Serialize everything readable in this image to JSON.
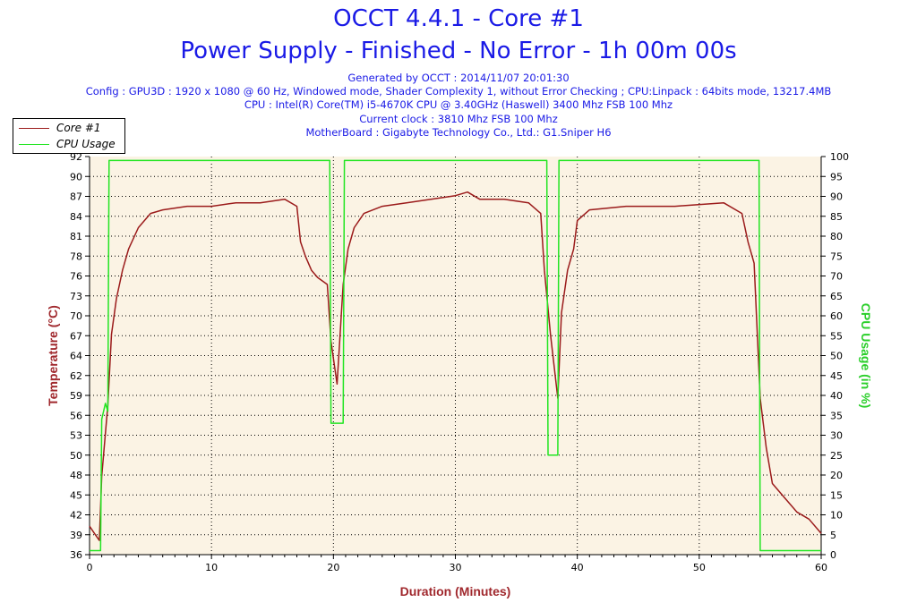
{
  "header": {
    "title": "OCCT 4.4.1 - Core #1",
    "subtitle": "Power Supply - Finished - No Error - 1h 00m 00s",
    "info_lines": [
      "Generated by OCCT : 2014/11/07 20:01:30",
      "Config : GPU3D : 1920 x 1080 @ 60 Hz, Windowed mode, Shader Complexity 1, without Error Checking ; CPU:Linpack : 64bits mode, 13217.4MB",
      "CPU : Intel(R) Core(TM) i5-4670K CPU @ 3.40GHz (Haswell) 3400 Mhz FSB 100 Mhz",
      "Current clock : 3810 Mhz FSB 100 Mhz",
      "MotherBoard : Gigabyte Technology Co., Ltd.: G1.Sniper H6"
    ]
  },
  "colors": {
    "temperature": "#9b1b1b",
    "cpu_usage": "#22e522",
    "plot_bg": "#fbf3e4",
    "title": "#1a1ae6",
    "axis_label_left": "#a0282d",
    "axis_label_right": "#2bcf2b"
  },
  "chart_data": {
    "type": "line",
    "xlabel": "Duration (Minutes)",
    "ylabel_left": "Temperature (°C)",
    "ylabel_right": "CPU Usage (in %)",
    "xlim": [
      0,
      60
    ],
    "ylim_left": [
      36,
      92
    ],
    "ylim_right": [
      0,
      100
    ],
    "x_ticks": [
      0,
      10,
      20,
      30,
      40,
      50,
      60
    ],
    "y_left_ticks": [
      36,
      39,
      42,
      45,
      48,
      50,
      53,
      56,
      59,
      62,
      64,
      67,
      70,
      73,
      76,
      78,
      81,
      84,
      87,
      90,
      92
    ],
    "y_right_ticks": [
      0,
      5,
      10,
      15,
      20,
      25,
      30,
      35,
      40,
      45,
      50,
      55,
      60,
      65,
      70,
      75,
      80,
      85,
      90,
      95,
      100
    ],
    "grid": true,
    "legend": "top-left",
    "series": [
      {
        "name": "Core #1",
        "axis": "left",
        "x": [
          0,
          0.4,
          0.8,
          1.0,
          1.2,
          1.5,
          1.8,
          2.2,
          2.7,
          3.2,
          4.0,
          5.0,
          6.0,
          8.0,
          10.0,
          12.0,
          14.0,
          16.0,
          17.0,
          17.3,
          17.7,
          18.2,
          18.7,
          19.5,
          19.8,
          20.3,
          20.8,
          21.2,
          21.7,
          22.5,
          24.0,
          26.0,
          28.0,
          30.0,
          31.0,
          32.0,
          34.0,
          36.0,
          37.0,
          37.3,
          37.8,
          38.4,
          38.7,
          39.2,
          39.7,
          40.0,
          41.0,
          44.0,
          48.0,
          52.0,
          53.5,
          54.0,
          54.5,
          55.0,
          55.5,
          56.0,
          57.0,
          58.0,
          59.0,
          60.0
        ],
        "y": [
          40,
          39,
          38,
          47,
          51,
          57,
          67,
          72,
          76,
          79,
          82,
          84,
          84.5,
          85,
          85,
          85.5,
          85.5,
          86,
          85,
          80,
          78,
          76,
          75,
          74,
          66,
          60,
          74,
          79,
          82,
          84,
          85,
          85.5,
          86,
          86.5,
          87,
          86,
          86,
          85.5,
          84,
          76,
          67,
          58,
          70,
          76,
          79,
          83,
          84.5,
          85,
          85,
          85.5,
          84,
          80,
          77,
          58,
          51,
          46,
          44,
          42,
          41,
          39
        ]
      },
      {
        "name": "CPU Usage",
        "axis": "right",
        "x": [
          0,
          0.9,
          1.0,
          1.3,
          1.5,
          1.6,
          10,
          19.7,
          19.8,
          20.8,
          20.9,
          37.5,
          37.6,
          38.4,
          38.5,
          54.9,
          55.0,
          60
        ],
        "y": [
          1,
          1,
          34,
          38,
          36,
          99,
          99,
          99,
          33,
          33,
          99,
          99,
          25,
          25,
          99,
          99,
          1,
          1
        ]
      }
    ]
  }
}
